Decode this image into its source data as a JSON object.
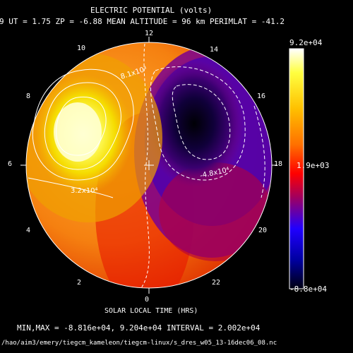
{
  "window": {
    "title": "ELECTRIC POTENTIAL (volts)",
    "subtitle": "9  UT =  1.75  ZP =  -6.88  MEAN ALTITUDE =  96 km  PERIMLAT = -41.2",
    "footer_minmax": "MIN,MAX = -8.816e+04, 9.204e+04 INTERVAL =  2.002e+04",
    "footer_path": "/hao/aim3/emery/tiegcm_kameleon/tiegcm-linux/s_dres_w05_13-16dec06_08.nc"
  },
  "chart_data": {
    "type": "contour",
    "title": "ELECTRIC POTENTIAL (volts)",
    "xlabel": "SOLAR LOCAL TIME (HRS)",
    "units": "volts",
    "min": -88160.0,
    "max": 92040.0,
    "contour_interval": 20020.0,
    "local_time_labels": [
      "12",
      "14",
      "16",
      "18",
      "20",
      "22",
      "0",
      "2",
      "4",
      "6",
      "8",
      "10"
    ],
    "contour_labels": [
      "8.1x10³",
      "-4.8x10⁴",
      "3.2x10⁴"
    ],
    "colorbar": {
      "max_label": "9.2e+04",
      "mid_label": "1.9e+03",
      "min_label": "-8.8e+04",
      "colors": [
        "#ffffcc",
        "#ffff00",
        "#ff8000",
        "#ff0000",
        "#0000ff",
        "#000000"
      ]
    },
    "positive_cell_color": "#ffff66",
    "negative_cell_color": "#000010"
  }
}
